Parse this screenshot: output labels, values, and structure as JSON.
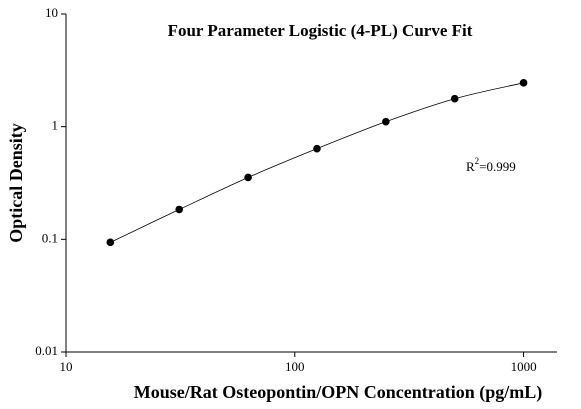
{
  "chart_data": {
    "type": "scatter",
    "title": "Four Parameter Logistic (4-PL) Curve Fit",
    "x_label": "Mouse/Rat Osteopontin/OPN Concentration (pg/mL)",
    "y_label": "Optical Density",
    "x": [
      15.625,
      31.25,
      62.5,
      125,
      250,
      500,
      1000
    ],
    "values": [
      0.094,
      0.184,
      0.354,
      0.638,
      1.107,
      1.77,
      2.45
    ],
    "color": "#000000",
    "xscale": "log",
    "yscale": "log",
    "xlim": [
      10,
      1400
    ],
    "ylim": [
      0.01,
      10
    ],
    "xticks": [
      10,
      100,
      1000
    ],
    "yticks": [
      0.01,
      0.1,
      1,
      10
    ],
    "annotation": [
      "R",
      "2",
      "=0.999"
    ]
  }
}
